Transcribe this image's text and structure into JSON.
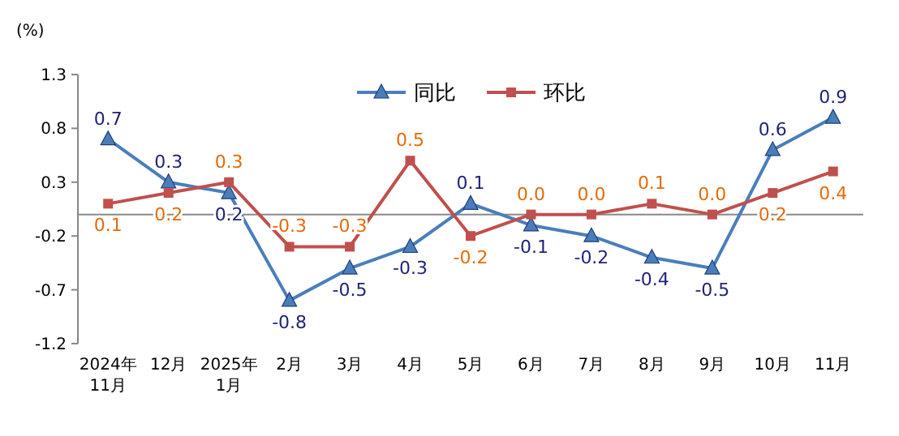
{
  "chart_data": {
    "type": "line",
    "ylabel": "(%)",
    "categories": [
      "2024年\n11月",
      "12月",
      "2025年\n1月",
      "2月",
      "3月",
      "4月",
      "5月",
      "6月",
      "7月",
      "8月",
      "9月",
      "10月",
      "11月"
    ],
    "ylim": [
      -1.2,
      1.3
    ],
    "yticks": [
      -1.2,
      -0.7,
      -0.2,
      0.3,
      0.8,
      1.3
    ],
    "legend": "top",
    "grid": false,
    "series": [
      {
        "name": "同比",
        "color": "#4a7ebb",
        "marker": "triangle",
        "values": [
          0.7,
          0.3,
          0.2,
          -0.8,
          -0.5,
          -0.3,
          0.1,
          -0.1,
          -0.2,
          -0.4,
          -0.5,
          0.6,
          0.9
        ],
        "value_labels": [
          "0.7",
          "0.3",
          "0.2",
          "-0.8",
          "-0.5",
          "-0.3",
          "0.1",
          "-0.1",
          "-0.2",
          "-0.4",
          "-0.5",
          "0.6",
          "0.9"
        ]
      },
      {
        "name": "环比",
        "color": "#c0504d",
        "marker": "square",
        "values": [
          0.1,
          0.2,
          0.3,
          -0.3,
          -0.3,
          0.5,
          -0.2,
          0.0,
          0.0,
          0.1,
          0.0,
          0.2,
          0.4
        ],
        "value_labels": [
          "0.1",
          "0.2",
          "0.3",
          "-0.3",
          "-0.3",
          "0.5",
          "-0.2",
          "0.0",
          "0.0",
          "0.1",
          "0.0",
          "0.2",
          "0.4"
        ]
      }
    ]
  }
}
